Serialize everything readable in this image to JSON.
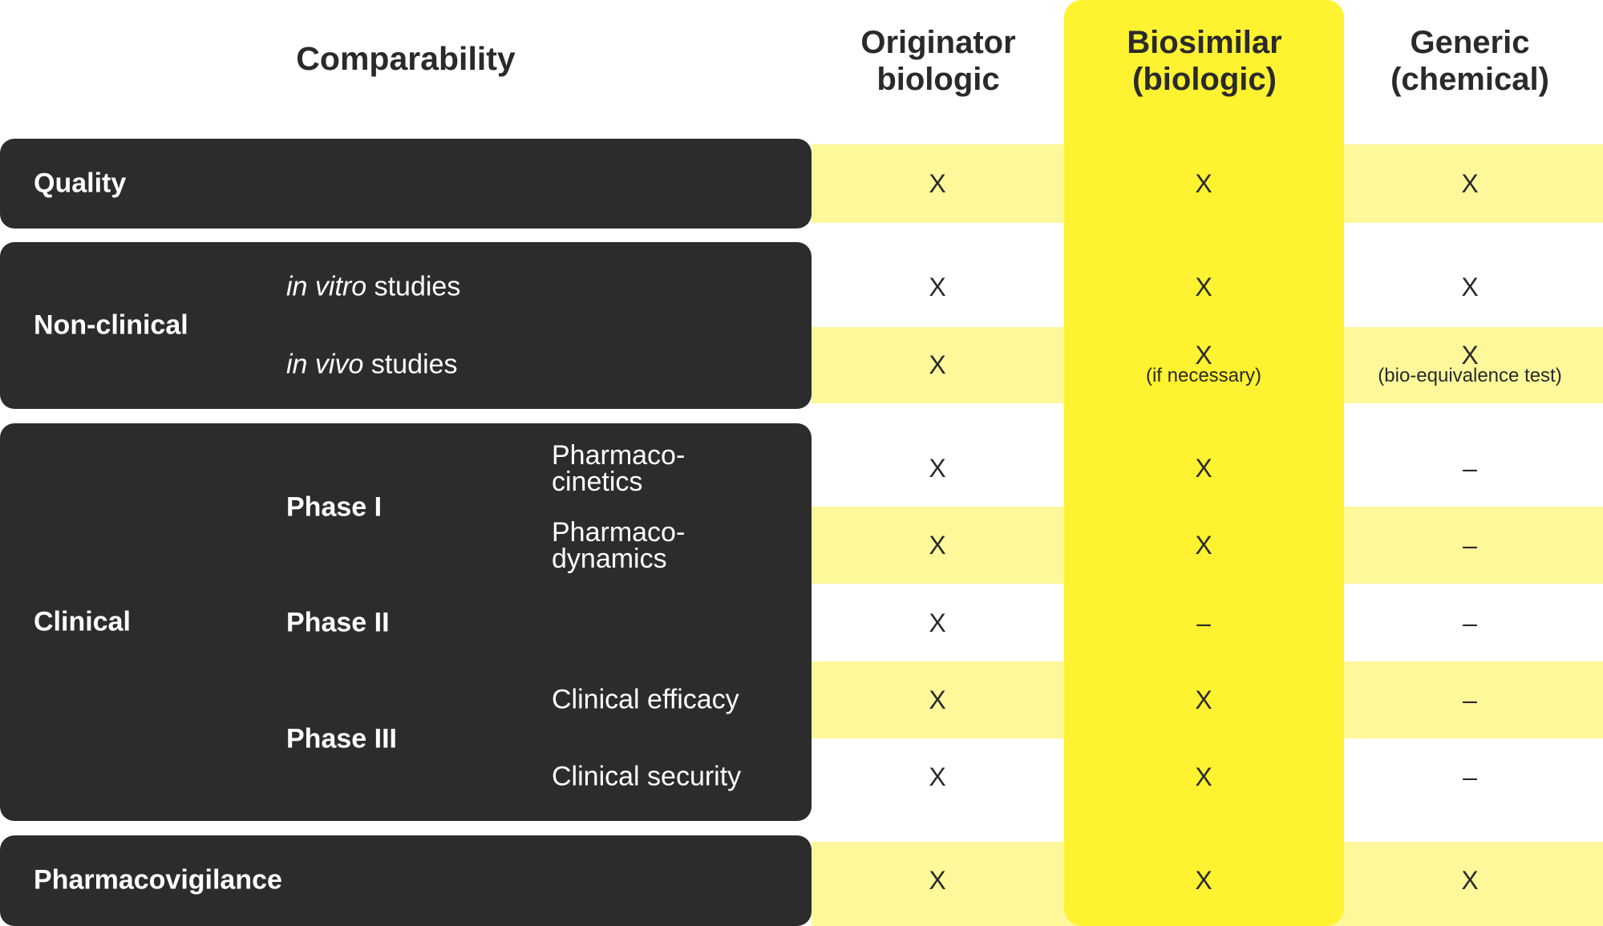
{
  "header": {
    "comparability": "Comparability",
    "originator": "Originator\nbiologic",
    "biosimilar": "Biosimilar\n(biologic)",
    "generic": "Generic\n(chemical)"
  },
  "categories": {
    "quality": "Quality",
    "non_clinical": "Non-clinical",
    "clinical": "Clinical",
    "pharmacovigilance": "Pharmacovigilance"
  },
  "non_clinical": {
    "in_vitro_italic": "in vitro",
    "in_vivo_italic": "in vivo",
    "studies": "studies"
  },
  "clinical": {
    "phase1": "Phase I",
    "phase2": "Phase II",
    "phase3": "Phase III",
    "pk": "Pharmaco-\ncinetics",
    "pd": "Pharmaco-\ndynamics",
    "efficacy": "Clinical efficacy",
    "security": "Clinical security"
  },
  "values": {
    "quality": [
      "X",
      "X",
      "X"
    ],
    "in_vitro": [
      "X",
      "X",
      "X"
    ],
    "in_vivo": [
      "X",
      "X",
      "X"
    ],
    "in_vivo_notes": {
      "biosimilar": "(if necessary)",
      "generic": "(bio-equivalence test)"
    },
    "pk": [
      "X",
      "X",
      "–"
    ],
    "pd": [
      "X",
      "X",
      "–"
    ],
    "phase2": [
      "X",
      "–",
      "–"
    ],
    "efficacy": [
      "X",
      "X",
      "–"
    ],
    "security": [
      "X",
      "X",
      "–"
    ],
    "pharmacovigilance": [
      "X",
      "X",
      "X"
    ]
  },
  "colors": {
    "highlight_column": "#fff230",
    "stripe": "#fdf89a",
    "card": "#2c2c2c"
  }
}
